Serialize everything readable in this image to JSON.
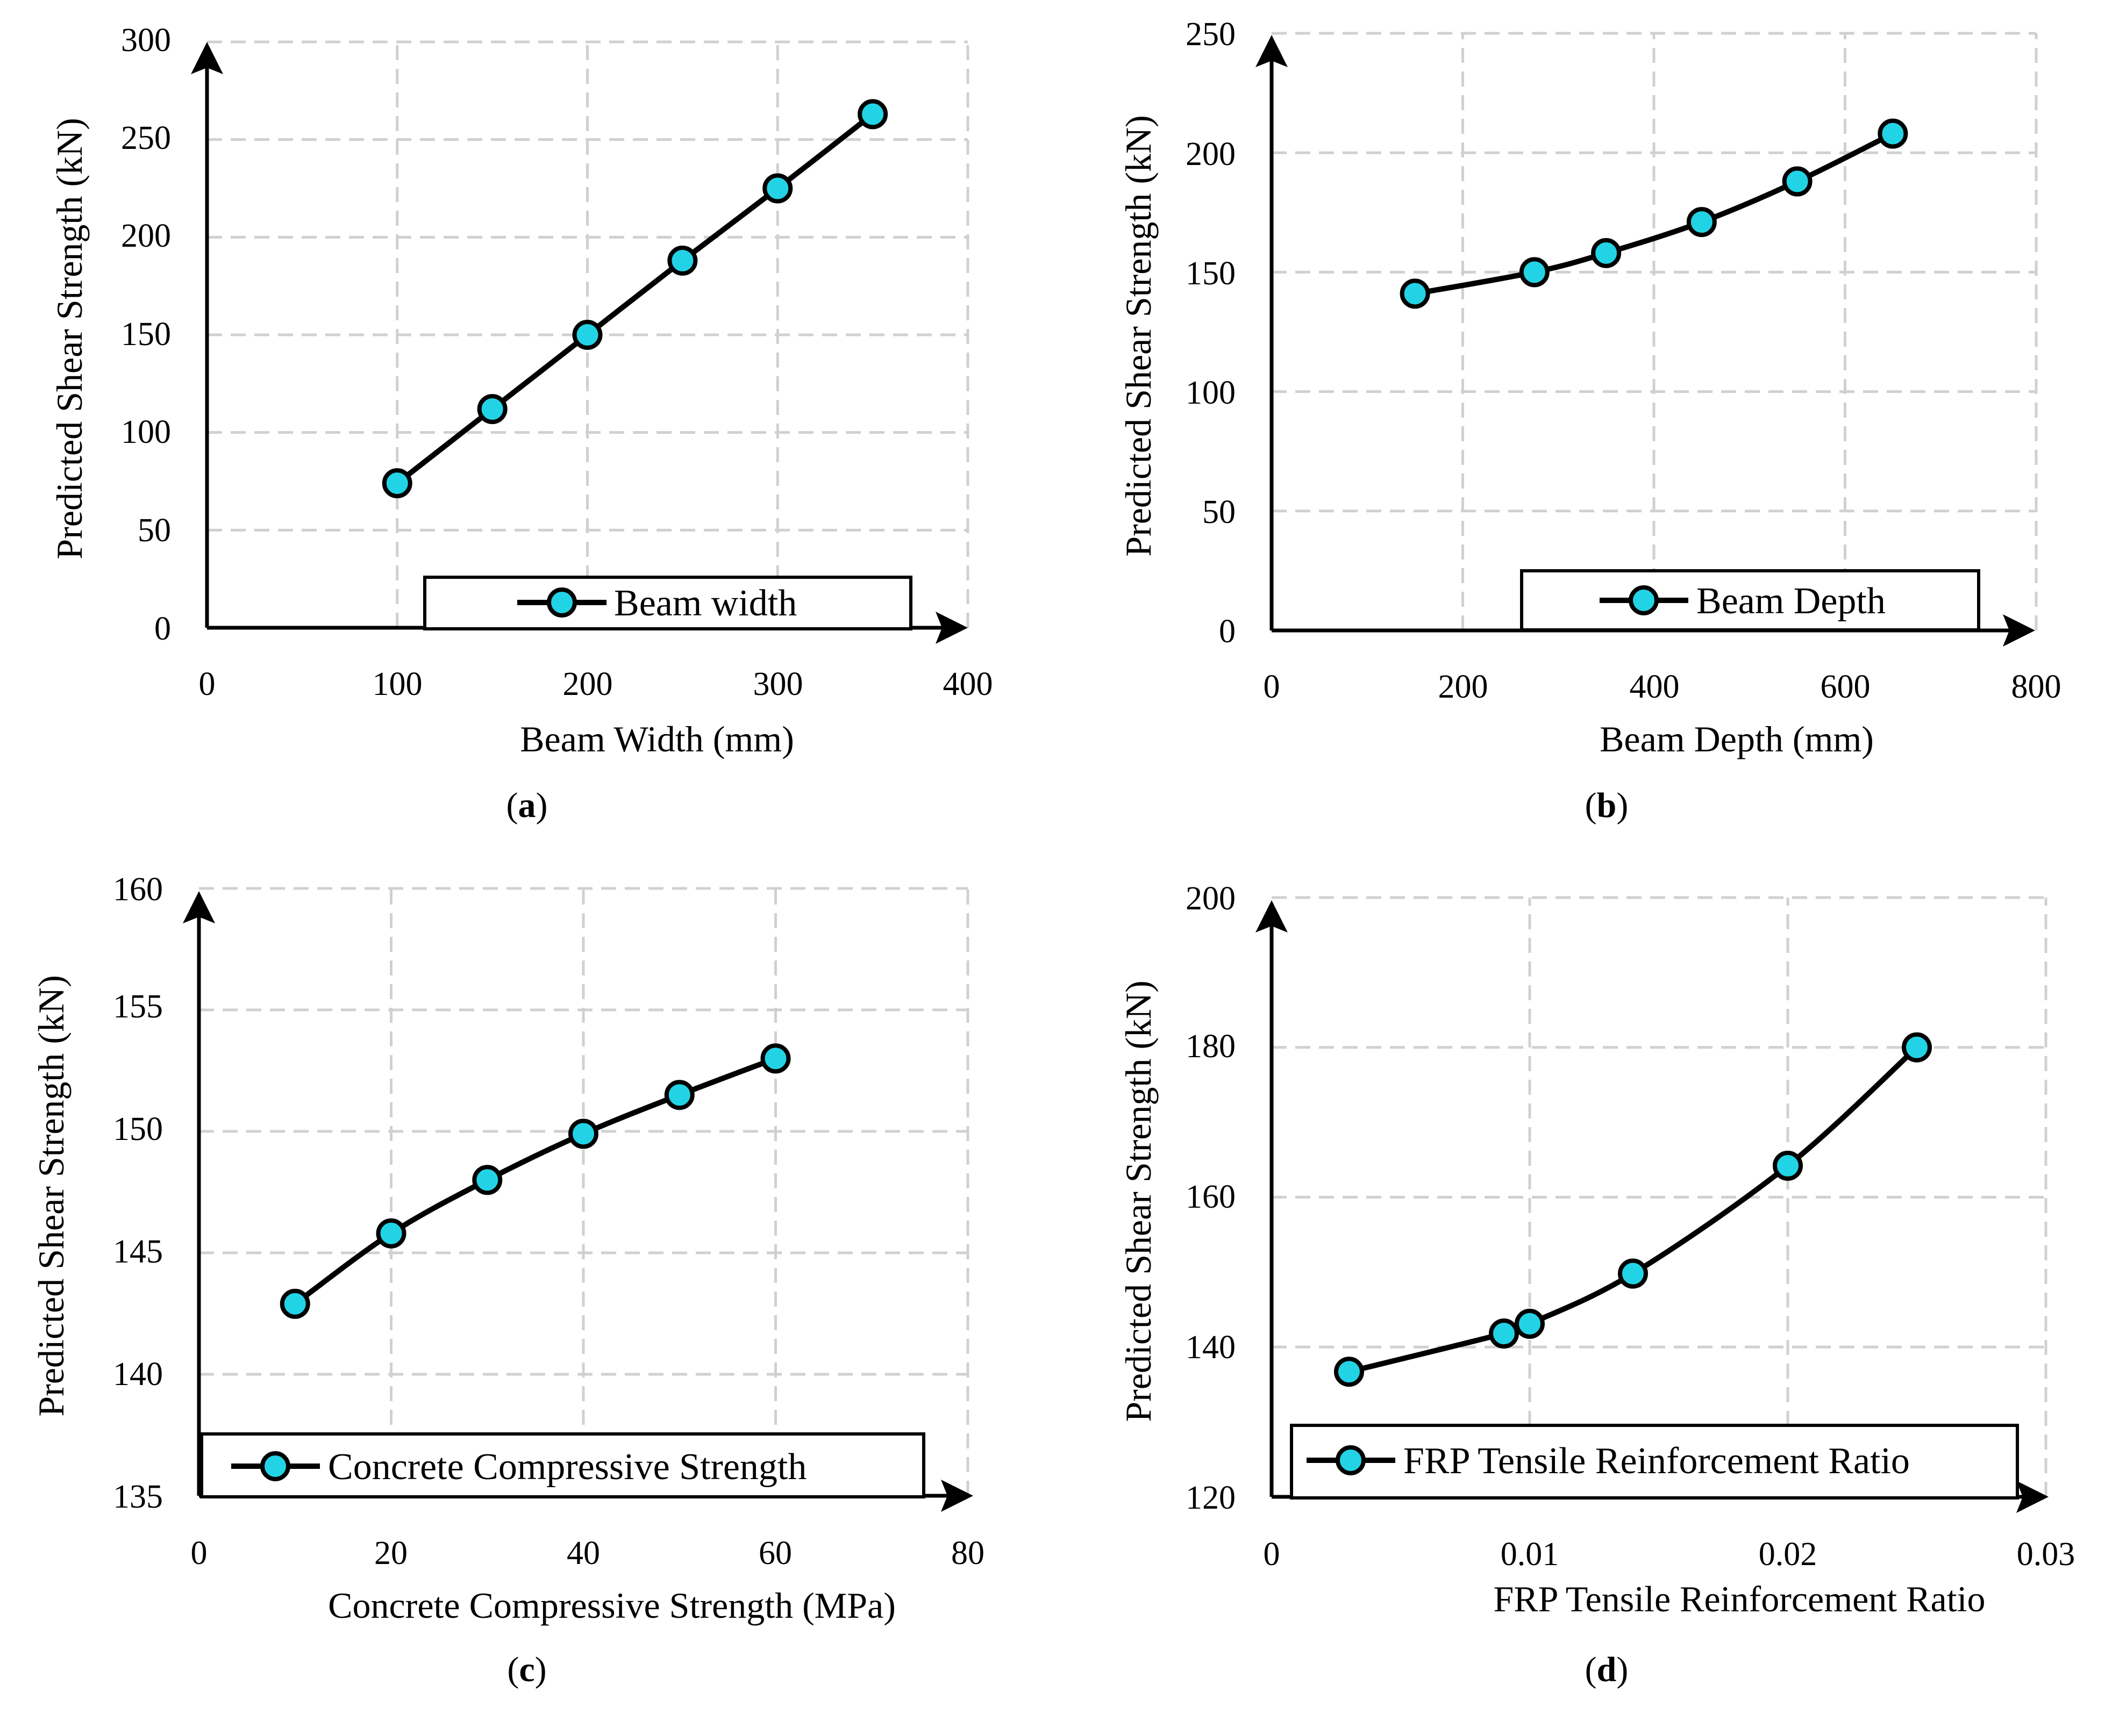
{
  "chart_data": [
    {
      "type": "line",
      "panel": "(a)",
      "panel_letter": "a",
      "xlabel": "Beam Width (mm)",
      "ylabel": "Predicted Shear Strength (kN)",
      "xlim": [
        0,
        400
      ],
      "ylim": [
        0,
        300
      ],
      "xticks": [
        0,
        100,
        200,
        300,
        400
      ],
      "yticks": [
        0,
        50,
        100,
        150,
        200,
        250,
        300
      ],
      "xtick_labels": [
        "0",
        "100",
        "200",
        "300",
        "400"
      ],
      "ytick_labels": [
        "0",
        "50",
        "100",
        "150",
        "200",
        "250",
        "300"
      ],
      "legend": "Beam width",
      "legend_position": "bottom-right",
      "grid": true,
      "series": [
        {
          "name": "Beam width",
          "x": [
            100,
            150,
            200,
            250,
            300,
            350
          ],
          "y": [
            74,
            112,
            150,
            188,
            225,
            263
          ]
        }
      ]
    },
    {
      "type": "line",
      "panel": "(b)",
      "panel_letter": "b",
      "xlabel": "Beam Depth (mm)",
      "ylabel": "Predicted Shear Strength (kN)",
      "xlim": [
        0,
        800
      ],
      "ylim": [
        0,
        250
      ],
      "xticks": [
        0,
        200,
        400,
        600,
        800
      ],
      "yticks": [
        0,
        50,
        100,
        150,
        200,
        250
      ],
      "xtick_labels": [
        "0",
        "200",
        "400",
        "600",
        "800"
      ],
      "ytick_labels": [
        "0",
        "50",
        "100",
        "150",
        "200",
        "250"
      ],
      "legend": "Beam Depth",
      "legend_position": "bottom-right",
      "grid": true,
      "series": [
        {
          "name": "Beam Depth",
          "x": [
            150,
            275,
            350,
            450,
            550,
            650
          ],
          "y": [
            141,
            150,
            158,
            171,
            188,
            208
          ]
        }
      ]
    },
    {
      "type": "line",
      "panel": "(c)",
      "panel_letter": "c",
      "xlabel": "Concrete Compressive Strength (MPa)",
      "ylabel": "Predicted Shear Strength (kN)",
      "xlim": [
        0,
        80
      ],
      "ylim": [
        135,
        160
      ],
      "xticks": [
        0,
        20,
        40,
        60,
        80
      ],
      "yticks": [
        135,
        140,
        145,
        150,
        155,
        160
      ],
      "xtick_labels": [
        "0",
        "20",
        "40",
        "60",
        "80"
      ],
      "ytick_labels": [
        "135",
        "140",
        "145",
        "150",
        "155",
        "160"
      ],
      "legend": "Concrete Compressive Strength",
      "legend_position": "bottom",
      "grid": true,
      "series": [
        {
          "name": "Concrete Compressive Strength",
          "x": [
            10,
            20,
            30,
            40,
            50,
            60
          ],
          "y": [
            142.9,
            145.8,
            148.0,
            149.9,
            151.5,
            153.0
          ]
        }
      ]
    },
    {
      "type": "line",
      "panel": "(d)",
      "panel_letter": "d",
      "xlabel": "FRP Tensile Reinforcement Ratio",
      "ylabel": "Predicted Shear Strength (kN)",
      "xlim": [
        0,
        0.03
      ],
      "ylim": [
        120,
        200
      ],
      "xticks": [
        0,
        0.01,
        0.02,
        0.03
      ],
      "yticks": [
        120,
        140,
        160,
        180,
        200
      ],
      "xtick_labels": [
        "0",
        "0.01",
        "0.02",
        "0.03"
      ],
      "ytick_labels": [
        "120",
        "140",
        "160",
        "180",
        "200"
      ],
      "legend": "FRP Tensile Reinforcement Ratio",
      "legend_position": "bottom",
      "grid": true,
      "series": [
        {
          "name": "FRP Tensile Reinforcement Ratio",
          "x": [
            0.003,
            0.009,
            0.01,
            0.014,
            0.02,
            0.025
          ],
          "y": [
            136.7,
            141.8,
            143.1,
            149.8,
            164.2,
            180.0
          ]
        }
      ]
    }
  ]
}
